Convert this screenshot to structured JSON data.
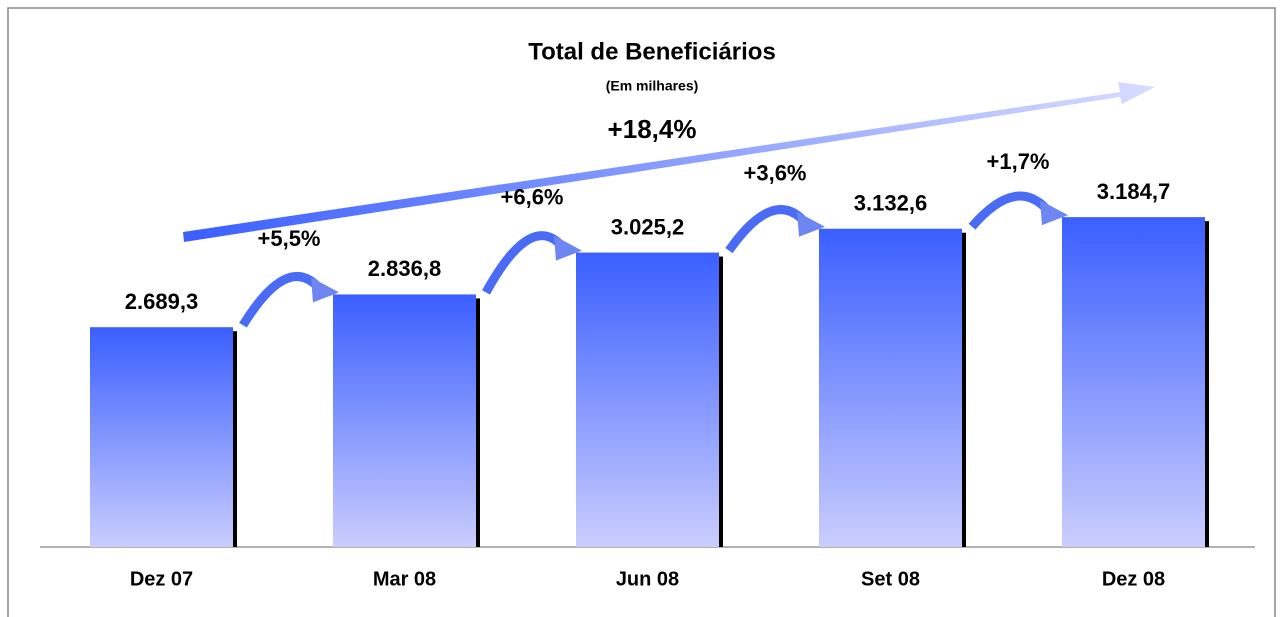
{
  "chart_data": {
    "type": "bar",
    "title": "Total de Beneficiários",
    "subtitle": "(Em milhares)",
    "categories": [
      "Dez 07",
      "Mar 08",
      "Jun 08",
      "Set 08",
      "Dez 08"
    ],
    "values": [
      2689.3,
      2836.8,
      3025.2,
      3132.6,
      3184.7
    ],
    "value_labels": [
      "2.689,3",
      "2.836,8",
      "3.025,2",
      "3.132,6",
      "3.184,7"
    ],
    "growth_labels": [
      "+5,5%",
      "+6,6%",
      "+3,6%",
      "+1,7%"
    ],
    "total_growth": "+18,4%",
    "color": "#3a5fff",
    "ylim": [
      1700,
      4000
    ]
  }
}
